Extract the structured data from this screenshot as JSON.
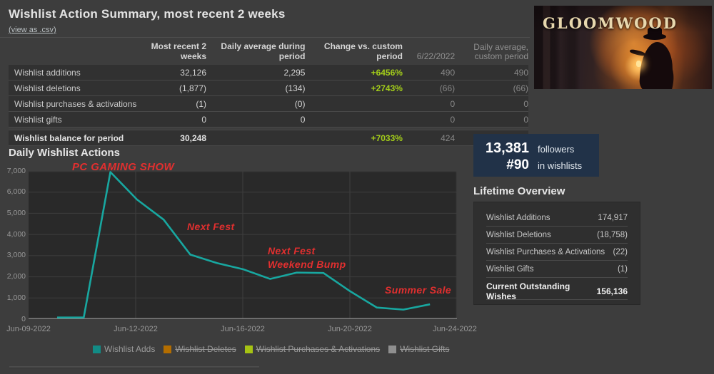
{
  "summary": {
    "title": "Wishlist Action Summary, most recent 2 weeks",
    "csv_link": "(view as .csv)",
    "columns": {
      "recent": "Most recent 2 weeks",
      "daily_avg": "Daily average during period",
      "change": "Change vs. custom period",
      "yesterday": "6/22/2022",
      "daily_avg_custom": "Daily average, custom period"
    },
    "rows": [
      {
        "label": "Wishlist additions",
        "recent": "32,126",
        "daily_avg": "2,295",
        "change": "+6456%",
        "yesterday": "490",
        "daily_avg_custom": "490"
      },
      {
        "label": "Wishlist deletions",
        "recent": "(1,877)",
        "daily_avg": "(134)",
        "change": "+2743%",
        "yesterday": "(66)",
        "daily_avg_custom": "(66)"
      },
      {
        "label": "Wishlist purchases & activations",
        "recent": "(1)",
        "daily_avg": "(0)",
        "change": "",
        "yesterday": "0",
        "daily_avg_custom": "0"
      },
      {
        "label": "Wishlist gifts",
        "recent": "0",
        "daily_avg": "0",
        "change": "",
        "yesterday": "0",
        "daily_avg_custom": "0"
      }
    ],
    "balance_row": {
      "label": "Wishlist balance for period",
      "recent": "30,248",
      "daily_avg": "",
      "change": "+7033%",
      "yesterday": "424",
      "daily_avg_custom": ""
    }
  },
  "banner": {
    "game_title": "GLOOMWOOD"
  },
  "stats": {
    "followers_value": "13,381",
    "followers_label": "followers",
    "rank_value": "#90",
    "rank_label": "in wishlists"
  },
  "lifetime": {
    "title": "Lifetime Overview",
    "rows": [
      {
        "label": "Wishlist Additions",
        "value": "174,917"
      },
      {
        "label": "Wishlist Deletions",
        "value": "(18,758)"
      },
      {
        "label": "Wishlist Purchases & Activations",
        "value": "(22)"
      },
      {
        "label": "Wishlist Gifts",
        "value": "(1)"
      }
    ],
    "total_row": {
      "label": "Current Outstanding Wishes",
      "value": "156,136"
    }
  },
  "chart_data": {
    "type": "line",
    "title": "Daily Wishlist Actions",
    "x": [
      "Jun-09-2022",
      "Jun-10-2022",
      "Jun-11-2022",
      "Jun-12-2022",
      "Jun-13-2022",
      "Jun-14-2022",
      "Jun-15-2022",
      "Jun-16-2022",
      "Jun-17-2022",
      "Jun-18-2022",
      "Jun-19-2022",
      "Jun-20-2022",
      "Jun-21-2022",
      "Jun-22-2022",
      "Jun-23-2022"
    ],
    "series": [
      {
        "name": "Wishlist Adds",
        "color": "#18a7a0",
        "values": [
          80,
          80,
          6950,
          5650,
          4700,
          3050,
          2650,
          2350,
          1900,
          2200,
          2180,
          1320,
          550,
          450,
          700
        ]
      }
    ],
    "hidden_series": [
      "Wishlist Deletes",
      "Wishlist Purchases & Activations",
      "Wishlist Gifts"
    ],
    "ylim": [
      0,
      7000
    ],
    "yticks": [
      0,
      1000,
      2000,
      3000,
      4000,
      5000,
      6000,
      7000
    ],
    "xticks": [
      "Jun-09-2022",
      "Jun-12-2022",
      "Jun-16-2022",
      "Jun-20-2022",
      "Jun-24-2022"
    ],
    "grid": true,
    "legend_position": "bottom",
    "annotations": {
      "pc_gaming_show": "PC GAMING SHOW",
      "next_fest": "Next Fest",
      "weekend_bump_line1": "Next Fest",
      "weekend_bump_line2": "Weekend Bump",
      "summer_sale": "Summer Sale",
      "color": "#e12f2f"
    }
  },
  "legend": {
    "items": [
      {
        "label": "Wishlist Adds",
        "color": "#128b85",
        "struck": false
      },
      {
        "label": "Wishlist Deletes",
        "color": "#b36d00",
        "struck": true
      },
      {
        "label": "Wishlist Purchases & Activations",
        "color": "#a6c313",
        "struck": true
      },
      {
        "label": "Wishlist Gifts",
        "color": "#8f8f8f",
        "struck": true
      }
    ]
  },
  "colors": {
    "accent_green": "#a3cd1a",
    "line_teal": "#18a7a0",
    "annotation_red": "#e12f2f",
    "stats_box_bg": "#213248"
  }
}
